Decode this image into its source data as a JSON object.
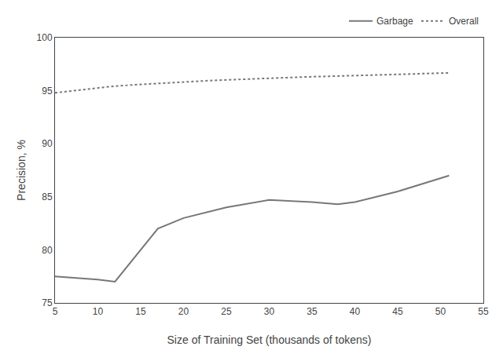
{
  "chart_data": {
    "type": "line",
    "xlabel": "Size of Training Set (thousands of tokens)",
    "ylabel": "Precision, %",
    "series": [
      {
        "name": "Garbage",
        "color": "#777777",
        "line_style": "solid",
        "x": [
          5,
          10,
          12,
          17,
          20,
          25,
          30,
          35,
          38,
          40,
          45,
          51
        ],
        "values": [
          77.5,
          77.2,
          77.0,
          82.0,
          83.0,
          84.0,
          84.7,
          84.5,
          84.3,
          84.5,
          85.5,
          87.0
        ]
      },
      {
        "name": "Overall",
        "color": "#777777",
        "line_style": "dotted",
        "x": [
          5,
          8,
          11,
          14,
          17,
          20,
          23,
          26,
          29,
          32,
          35,
          38,
          41,
          44,
          47,
          51
        ],
        "values": [
          94.8,
          95.1,
          95.35,
          95.55,
          95.7,
          95.85,
          95.95,
          96.05,
          96.15,
          96.25,
          96.32,
          96.38,
          96.44,
          96.52,
          96.6,
          96.68
        ]
      }
    ],
    "xlim": [
      5,
      55
    ],
    "ylim": [
      75,
      100
    ],
    "xticks": [
      5,
      10,
      15,
      20,
      25,
      30,
      35,
      40,
      45,
      50,
      55
    ],
    "yticks": [
      75,
      80,
      85,
      90,
      95,
      100
    ],
    "grid": false,
    "legend": "upper right"
  }
}
